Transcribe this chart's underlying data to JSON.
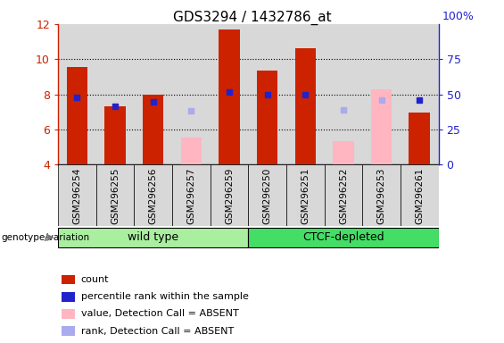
{
  "title": "GDS3294 / 1432786_at",
  "samples": [
    "GSM296254",
    "GSM296255",
    "GSM296256",
    "GSM296257",
    "GSM296259",
    "GSM296250",
    "GSM296251",
    "GSM296252",
    "GSM296253",
    "GSM296261"
  ],
  "count_values": [
    9.55,
    7.3,
    8.0,
    null,
    11.7,
    9.35,
    10.6,
    null,
    null,
    6.95
  ],
  "rank_values": [
    7.85,
    7.3,
    7.55,
    null,
    8.15,
    8.0,
    8.0,
    null,
    null,
    7.65
  ],
  "absent_value": [
    null,
    null,
    null,
    5.55,
    null,
    null,
    null,
    5.35,
    8.3,
    null
  ],
  "absent_rank": [
    null,
    null,
    null,
    7.05,
    null,
    null,
    null,
    7.1,
    7.65,
    null
  ],
  "ylim_left": [
    4,
    12
  ],
  "ylim_right": [
    0,
    100
  ],
  "yticks_left": [
    4,
    6,
    8,
    10,
    12
  ],
  "yticks_right": [
    0,
    25,
    50,
    75,
    100
  ],
  "count_color": "#CC2200",
  "rank_color": "#2222CC",
  "absent_value_color": "#FFB6C1",
  "absent_rank_color": "#AAAAEE",
  "col_bg_color": "#D8D8D8",
  "group1_color": "#AAEEA0",
  "group2_color": "#44DD66",
  "group1_label": "wild type",
  "group2_label": "CTCF-depleted",
  "group_label_text": "genotype/variation",
  "title_text": "GDS3294 / 1432786_at",
  "legend": [
    {
      "color": "#CC2200",
      "label": "count"
    },
    {
      "color": "#2222CC",
      "label": "percentile rank within the sample"
    },
    {
      "color": "#FFB6C1",
      "label": "value, Detection Call = ABSENT"
    },
    {
      "color": "#AAAAEE",
      "label": "rank, Detection Call = ABSENT"
    }
  ]
}
